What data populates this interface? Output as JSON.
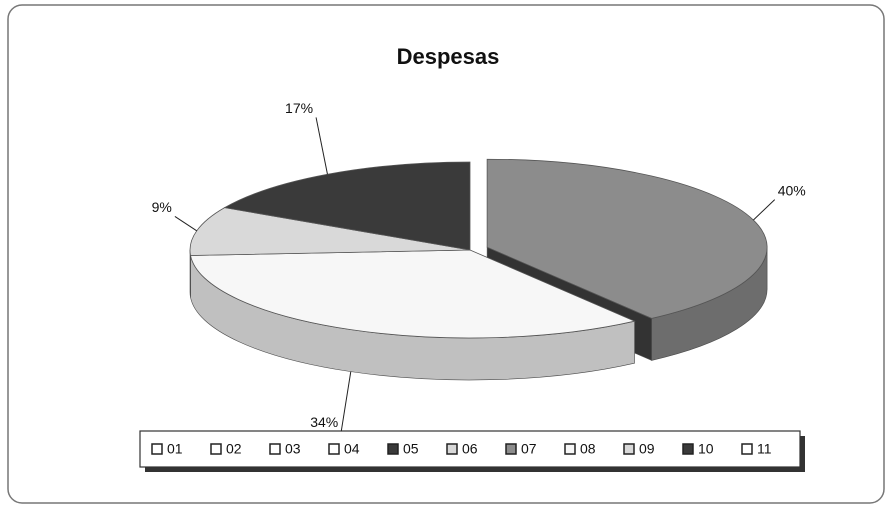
{
  "chart_data": {
    "type": "pie",
    "title": "Despesas",
    "categories": [
      "01",
      "02",
      "03",
      "04",
      "05",
      "06",
      "07",
      "08",
      "09",
      "10",
      "11"
    ],
    "values": [
      0,
      0,
      0,
      0,
      0,
      0,
      40,
      34,
      9,
      17,
      0
    ],
    "value_labels": [
      null,
      null,
      null,
      null,
      null,
      null,
      "40%",
      "34%",
      "9%",
      "17%",
      null
    ],
    "colors": [
      "#ffffff",
      "#ffffff",
      "#ffffff",
      "#ffffff",
      "#3a3a3a",
      "#d8d8d8",
      "#8c8c8c",
      "#f7f7f7",
      "#d9d9d9",
      "#3a3a3a",
      "#ffffff"
    ],
    "legend": "bottom"
  }
}
